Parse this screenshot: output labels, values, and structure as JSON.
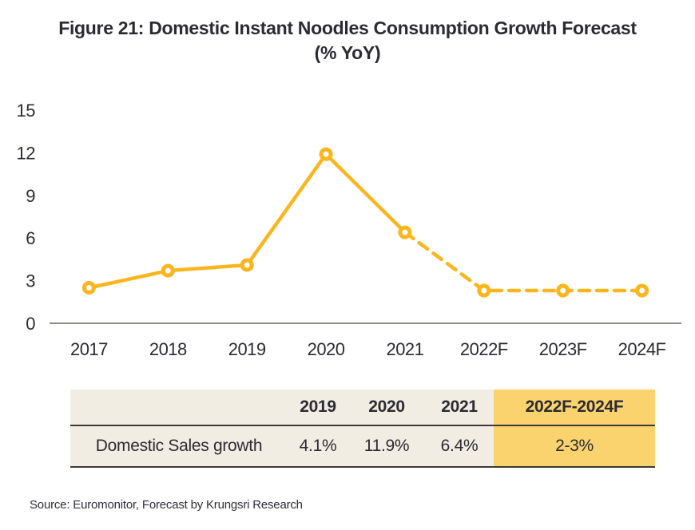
{
  "figure": {
    "title_line1": "Figure 21: Domestic Instant Noodles Consumption Growth Forecast",
    "title_line2": "(% YoY)",
    "source": "Source: Euromonitor, Forecast by Krungsri Research"
  },
  "colors": {
    "line": "#fbb61e",
    "marker_fill": "#ffffff",
    "axis_line": "#6f6660",
    "text": "#2b2b33",
    "table_beige": "#f2ede3",
    "table_highlight": "#fad36f",
    "table_border": "#3a3a3a"
  },
  "chart_data": {
    "type": "line",
    "title": "Figure 21: Domestic Instant Noodles Consumption Growth Forecast (% YoY)",
    "categories": [
      "2017",
      "2018",
      "2019",
      "2020",
      "2021",
      "2022F",
      "2023F",
      "2024F"
    ],
    "series": [
      {
        "name": "Domestic instant noodles consumption growth (% YoY)",
        "values": [
          2.5,
          3.7,
          4.1,
          11.9,
          6.4,
          2.3,
          2.3,
          2.3
        ]
      }
    ],
    "yticks": [
      0,
      3,
      6,
      9,
      12,
      15
    ],
    "ylim": [
      0,
      15
    ],
    "grid": false,
    "legend": "none",
    "marker": "open-circle",
    "solid_until_index": 4,
    "line_style_note": "solid line 2017-2021, dashed forecast line 2021-2024F"
  },
  "table": {
    "headers": [
      "",
      "2019",
      "2020",
      "2021",
      "2022F-2024F"
    ],
    "rows": [
      [
        "Domestic Sales growth",
        "4.1%",
        "11.9%",
        "6.4%",
        "2-3%"
      ]
    ],
    "highlight_column": "2022F-2024F"
  }
}
